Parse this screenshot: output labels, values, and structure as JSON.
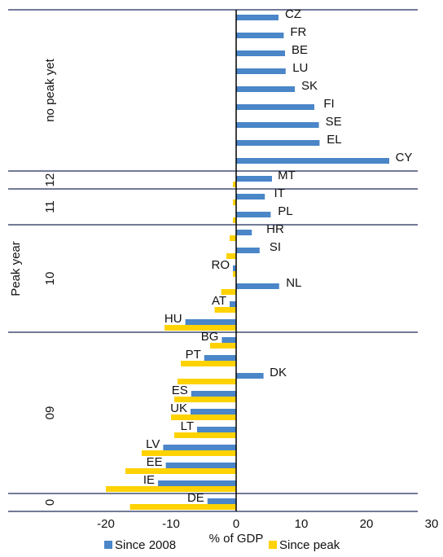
{
  "chart_data": {
    "type": "hbar",
    "ylabel": "Peak year",
    "xlabel": "% of GDP",
    "categories": [
      "CZ",
      "FR",
      "BE",
      "LU",
      "SK",
      "FI",
      "SE",
      "EL",
      "CY",
      "MT",
      "IT",
      "PL",
      "HR",
      "SI",
      "RO",
      "NL",
      "AT",
      "HU",
      "BG",
      "PT",
      "DK",
      "ES",
      "UK",
      "LT",
      "LV",
      "EE",
      "IE",
      "DE"
    ],
    "series": [
      {
        "name": "Since 2008",
        "color": "#4a86c8",
        "values": [
          6.5,
          7.3,
          7.5,
          7.6,
          9,
          12,
          12.7,
          12.8,
          23.5,
          5.5,
          4.4,
          5.3,
          2.4,
          3.6,
          -0.5,
          6.6,
          -1.0,
          -7.8,
          -2.2,
          -4.9,
          4.2,
          -6.9,
          -7.0,
          -6.0,
          -11.2,
          -10.8,
          -12,
          -4.4
        ]
      },
      {
        "name": "Since peak",
        "color": "#ffd200",
        "values": [
          null,
          null,
          null,
          null,
          null,
          null,
          null,
          null,
          null,
          -0.5,
          -0.5,
          -0.5,
          -1.0,
          -1.5,
          -0.5,
          -2.3,
          -3.3,
          -11,
          -4.0,
          -8.5,
          -9.0,
          -9.5,
          -10,
          -9.5,
          -14.5,
          -17,
          -20,
          -16.3
        ]
      }
    ],
    "groups": [
      {
        "label": "no peak yet",
        "count": 9
      },
      {
        "label": "12",
        "count": 1
      },
      {
        "label": "11",
        "count": 2
      },
      {
        "label": "10",
        "count": 6
      },
      {
        "label": "09",
        "count": 9
      },
      {
        "label": "0",
        "count": 1
      }
    ],
    "xlim": [
      -35,
      30
    ],
    "xticks": [
      -20,
      -10,
      0,
      10,
      20,
      30
    ]
  }
}
